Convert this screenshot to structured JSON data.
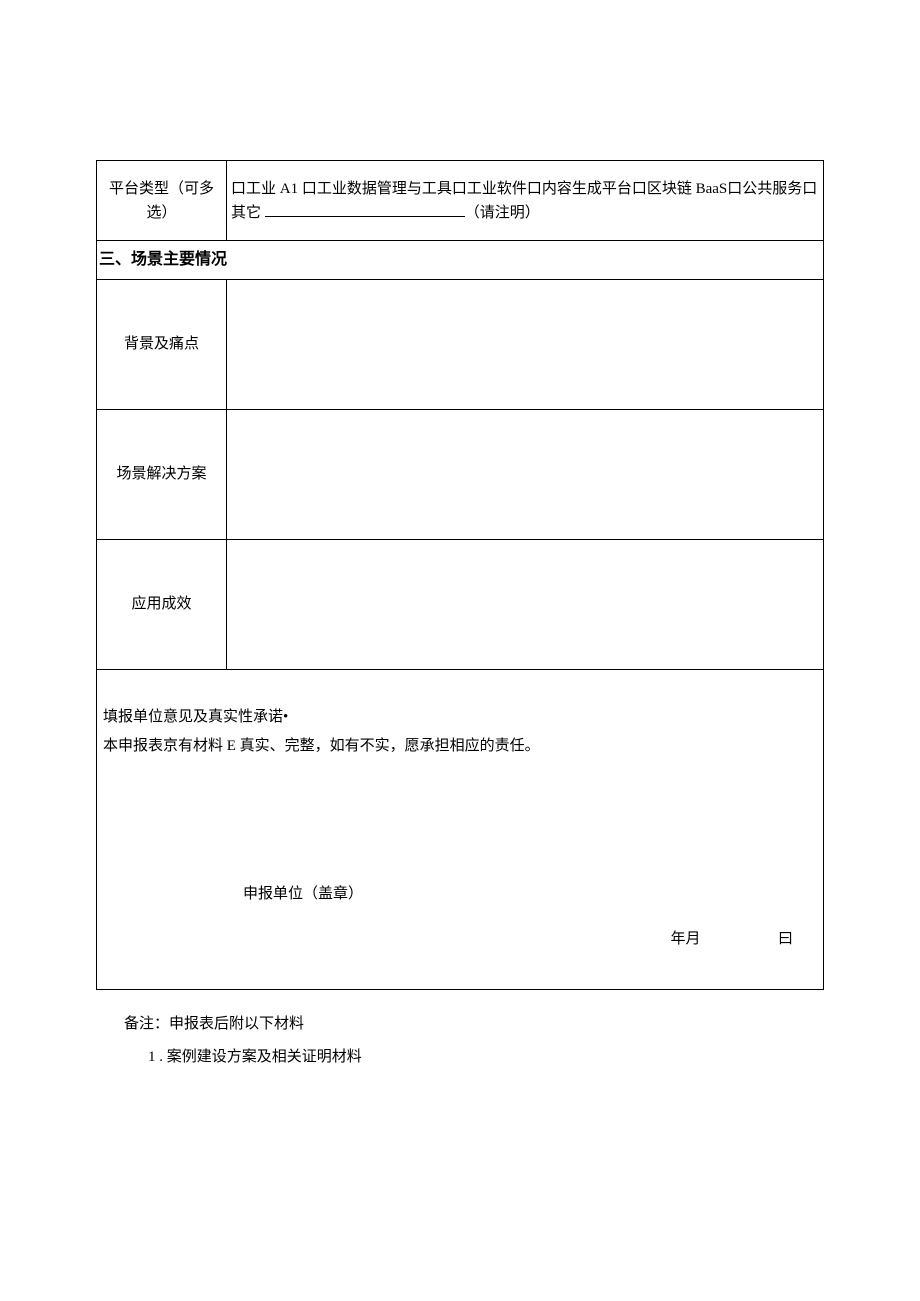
{
  "row1": {
    "label": "平台类型（可多选）",
    "content_prefix": "口工业 A1 口工业数据管理与工具口工业软件口内容生成平台口区块链 BaaS口公共服务口其它 ",
    "content_suffix": "（请注明）"
  },
  "section3_header": "三、场景主要情况",
  "rows": {
    "bg": {
      "label": "背景及痛点",
      "value": ""
    },
    "solution": {
      "label": "场景解决方案",
      "value": ""
    },
    "effect": {
      "label": "应用成效",
      "value": ""
    }
  },
  "commitment": {
    "title": "填报单位意见及真实性承诺•",
    "body": "本申报表京有材料 E 真实、完整，如有不实，愿承担相应的责任。",
    "stamp": "申报单位（盖章）",
    "year_month": "年月",
    "day": "曰"
  },
  "notes": {
    "header": "备注：申报表后附以下材料",
    "item1": "1 . 案例建设方案及相关证明材料"
  },
  "style": {
    "text_color": "#000000",
    "border_color": "#000000",
    "background": "#ffffff",
    "font_size_pt": 11,
    "header_font_weight": "bold"
  }
}
